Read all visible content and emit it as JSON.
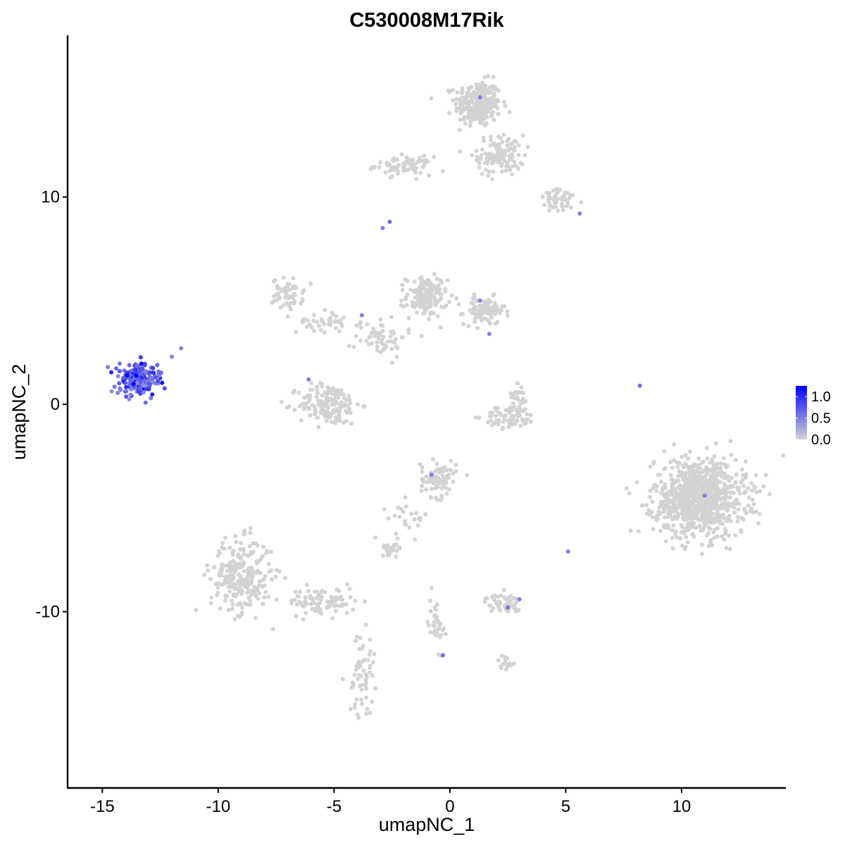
{
  "chart_data": {
    "type": "scatter",
    "title": "C530008M17Rik",
    "xlabel": "umapNC_1",
    "ylabel": "umapNC_2",
    "xlim": [
      -16.5,
      14.5
    ],
    "ylim": [
      -18.5,
      17.8
    ],
    "x_ticks": [
      -15,
      -10,
      -5,
      0,
      5,
      10
    ],
    "x_tick_labels": [
      "-15",
      "-10",
      "-5",
      "0",
      "5",
      "10"
    ],
    "y_ticks": [
      -10,
      0,
      10
    ],
    "y_tick_labels": [
      "-10",
      "0",
      "10"
    ],
    "grid": false,
    "legend": {
      "placement": "right",
      "type": "colorbar",
      "ticks": [
        1.0,
        0.5,
        0.0
      ],
      "tick_labels": [
        "1.0",
        "0.5",
        "0.0"
      ],
      "range": [
        0,
        1.25
      ],
      "low_color": "#d3d3d3",
      "high_color": "#0000ff"
    },
    "point_color_default": "#d3d3d3",
    "clusters": [
      {
        "center": [
          1.2,
          14.5
        ],
        "spread": [
          0.9,
          1.0
        ],
        "n": 260
      },
      {
        "center": [
          2.2,
          12.0
        ],
        "spread": [
          0.9,
          0.9
        ],
        "n": 120
      },
      {
        "center": [
          -2.0,
          11.5
        ],
        "spread": [
          1.1,
          0.4
        ],
        "n": 70
      },
      {
        "center": [
          4.8,
          9.8
        ],
        "spread": [
          0.9,
          0.5
        ],
        "n": 50
      },
      {
        "center": [
          -7.0,
          5.3
        ],
        "spread": [
          0.6,
          0.7
        ],
        "n": 60
      },
      {
        "center": [
          -5.5,
          4.0
        ],
        "spread": [
          1.0,
          0.5
        ],
        "n": 40
      },
      {
        "center": [
          -1.0,
          5.2
        ],
        "spread": [
          0.8,
          0.9
        ],
        "n": 150
      },
      {
        "center": [
          1.5,
          4.5
        ],
        "spread": [
          0.8,
          0.6
        ],
        "n": 90
      },
      {
        "center": [
          -3.0,
          3.3
        ],
        "spread": [
          1.0,
          0.9
        ],
        "n": 60
      },
      {
        "center": [
          -5.2,
          0.0
        ],
        "spread": [
          1.2,
          0.9
        ],
        "n": 170
      },
      {
        "center": [
          2.6,
          -0.6
        ],
        "spread": [
          1.0,
          0.5
        ],
        "n": 80
      },
      {
        "center": [
          3.0,
          0.5
        ],
        "spread": [
          0.3,
          0.6
        ],
        "n": 25
      },
      {
        "center": [
          -0.5,
          -3.6
        ],
        "spread": [
          0.7,
          0.8
        ],
        "n": 80
      },
      {
        "center": [
          -1.8,
          -5.5
        ],
        "spread": [
          0.8,
          0.8
        ],
        "n": 25
      },
      {
        "center": [
          -2.5,
          -6.9
        ],
        "spread": [
          0.4,
          0.3
        ],
        "n": 25
      },
      {
        "center": [
          -9.0,
          -8.3
        ],
        "spread": [
          1.2,
          1.6
        ],
        "n": 260
      },
      {
        "center": [
          -5.5,
          -9.5
        ],
        "spread": [
          1.3,
          0.6
        ],
        "n": 90
      },
      {
        "center": [
          -3.8,
          -13.0
        ],
        "spread": [
          0.5,
          1.8
        ],
        "n": 60
      },
      {
        "center": [
          -0.6,
          -10.5
        ],
        "spread": [
          0.3,
          1.2
        ],
        "n": 40
      },
      {
        "center": [
          2.3,
          -9.6
        ],
        "spread": [
          0.7,
          0.4
        ],
        "n": 50
      },
      {
        "center": [
          2.4,
          -12.4
        ],
        "spread": [
          0.3,
          0.3
        ],
        "n": 15
      },
      {
        "center": [
          10.8,
          -4.5
        ],
        "spread": [
          1.8,
          1.7
        ],
        "n": 900
      }
    ],
    "expressing_cluster": {
      "center": [
        -13.5,
        1.2
      ],
      "spread": [
        0.7,
        0.6
      ],
      "n": 220
    },
    "highlighted_points": [
      {
        "x": 1.3,
        "y": 14.8,
        "value": 0.5
      },
      {
        "x": -2.6,
        "y": 8.8,
        "value": 0.6
      },
      {
        "x": -2.9,
        "y": 8.5,
        "value": 0.5
      },
      {
        "x": 5.6,
        "y": 9.2,
        "value": 0.5
      },
      {
        "x": 1.3,
        "y": 5.0,
        "value": 0.5
      },
      {
        "x": 1.7,
        "y": 3.4,
        "value": 0.5
      },
      {
        "x": -3.8,
        "y": 4.3,
        "value": 0.5
      },
      {
        "x": -6.1,
        "y": 1.2,
        "value": 0.5
      },
      {
        "x": 8.2,
        "y": 0.9,
        "value": 0.6
      },
      {
        "x": -0.8,
        "y": -3.4,
        "value": 0.5
      },
      {
        "x": 11.0,
        "y": -4.4,
        "value": 0.5
      },
      {
        "x": 5.1,
        "y": -7.1,
        "value": 0.5
      },
      {
        "x": 3.0,
        "y": -9.4,
        "value": 0.5
      },
      {
        "x": 2.5,
        "y": -9.8,
        "value": 0.6
      },
      {
        "x": -0.3,
        "y": -12.1,
        "value": 0.6
      },
      {
        "x": -11.6,
        "y": 2.7,
        "value": 0.5
      },
      {
        "x": -12.0,
        "y": 2.3,
        "value": 0.5
      }
    ]
  }
}
